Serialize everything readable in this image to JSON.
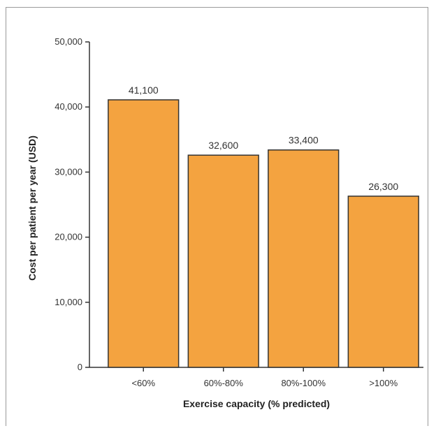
{
  "chart_data": {
    "type": "bar",
    "title": "",
    "xlabel": "Exercise capacity (% predicted)",
    "ylabel": "Cost per patient per year (USD)",
    "categories": [
      "<60%",
      "60%-80%",
      "80%-100%",
      ">100%"
    ],
    "values": [
      41100,
      32600,
      33400,
      26300
    ],
    "data_labels": [
      "41,100",
      "32,600",
      "33,400",
      "26,300"
    ],
    "ylim": [
      0,
      50000
    ],
    "yticks": [
      0,
      10000,
      20000,
      30000,
      40000,
      50000
    ],
    "ytick_labels": [
      "0",
      "10,000",
      "20,000",
      "30,000",
      "40,000",
      "50,000"
    ],
    "grid": false,
    "legend": "none",
    "colors": {
      "bar_fill": "#f4a340",
      "bar_stroke": "#333333",
      "axis": "#333333"
    }
  }
}
